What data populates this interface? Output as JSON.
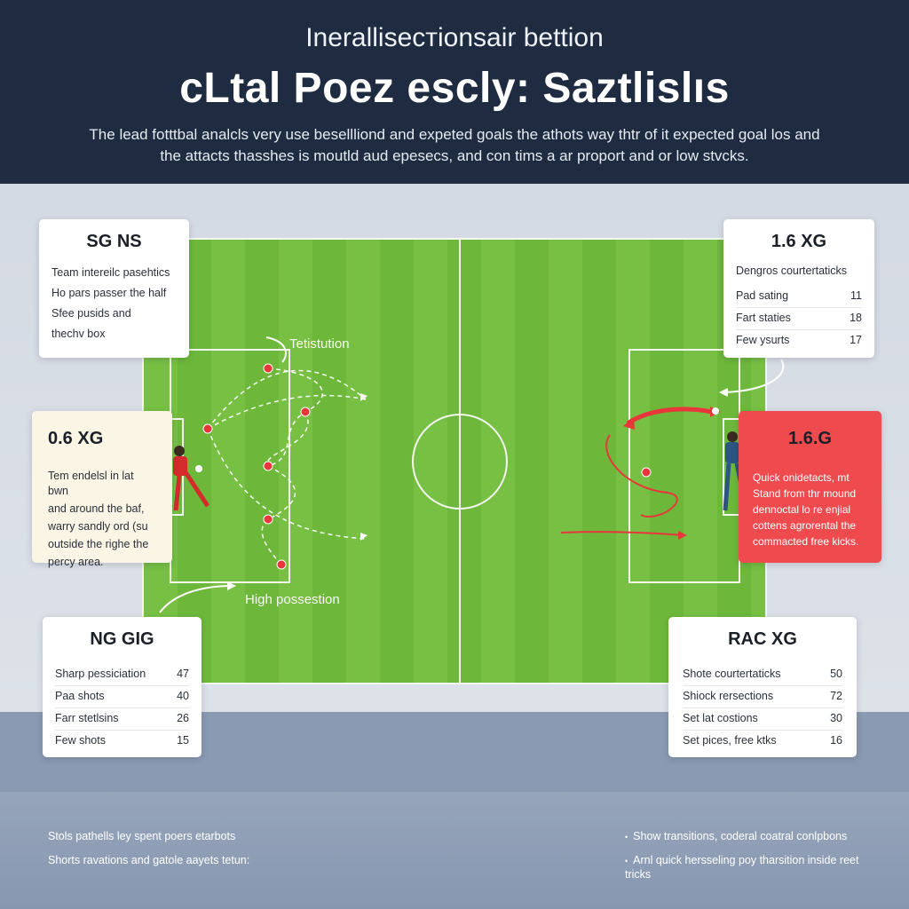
{
  "header": {
    "kicker": "Ineralliseстionsair bettion",
    "title": "cLtal Poez escly: Saztlislıs",
    "intro": "The lead fotttbal analcls very use besellliond and expeted goals the athots  way thtr of it expected goal los and the attacts thasshes is moutld aud epesecs, and con tims a ar proport and or low stvcks."
  },
  "pitch": {
    "label_top": "Tetistution",
    "label_bottom": "High possestion",
    "colors": {
      "grass": "#77c043",
      "grass_alt": "#6db83a",
      "lines": "#f3f7ef",
      "path": "#ffffff",
      "shot": "#e8363b"
    }
  },
  "cards": {
    "top_left": {
      "title": "SG NS",
      "lines": [
        "Team intereilc pasehtics",
        "Ho pars passer the half",
        "Sfee pusids and",
        "thechv box"
      ]
    },
    "top_right": {
      "title": "1.6 XG",
      "subtitle": "Dengros courtertaticks",
      "rows": [
        {
          "label": "Pad sating",
          "value": "11"
        },
        {
          "label": "Fart staties",
          "value": "18"
        },
        {
          "label": "Few ysurts",
          "value": "17"
        }
      ]
    },
    "mid_left": {
      "title": "0.6 XG",
      "lines": [
        "Tem endelsl in lat bwn",
        "and around the baf,",
        "warry sandly ord (su",
        "outside the righe the",
        "percy area."
      ]
    },
    "mid_right": {
      "title": "1.6.G",
      "lines": [
        "Quick onidetacts, mt",
        "Stand from thr mound",
        "dennoctal lo re enjial",
        "cottens agrorental the",
        "commacted free kicks."
      ]
    },
    "bottom_left": {
      "title": "NG GIG",
      "rows": [
        {
          "label": "Sharp pessiciation",
          "value": "47"
        },
        {
          "label": "Paa shots",
          "value": "40"
        },
        {
          "label": "Farr stetlsins",
          "value": "26"
        },
        {
          "label": "Few shots",
          "value": "15"
        }
      ]
    },
    "bottom_right": {
      "title": "RAC XG",
      "rows": [
        {
          "label": "Shote courtertaticks",
          "value": "50"
        },
        {
          "label": "Shiock rersections",
          "value": "72"
        },
        {
          "label": "Set lat costions",
          "value": "30"
        },
        {
          "label": "Set pices, free ktks",
          "value": "16"
        }
      ]
    }
  },
  "footer": {
    "left_1": "Stols pathells ley spent poers etarbots",
    "left_2": "Shorts ravations and gatole aayets tetun:",
    "right_1": "Show transitions, coderal coatral conlpbons",
    "right_2": "Arnl quick hersseling poy tharsition inside reet tricks"
  }
}
